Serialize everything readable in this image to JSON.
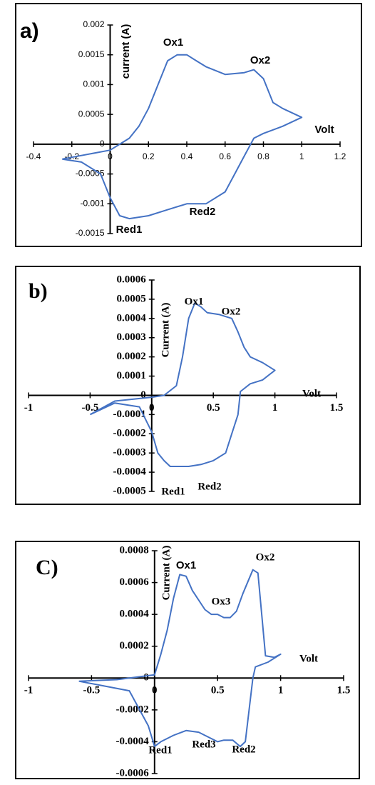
{
  "chart_data": [
    {
      "type": "line",
      "panel_label": "a)",
      "y_label": "current (A)",
      "x_label": "Volt",
      "color": "#4472c4",
      "annotations": [
        "Ox1",
        "Ox2",
        "Red1",
        "Red2"
      ],
      "xlim": [
        -0.4,
        1.2
      ],
      "xticks": [
        -0.4,
        -0.2,
        0,
        0.2,
        0.4,
        0.6,
        0.8,
        1,
        1.2
      ],
      "ylim": [
        -0.0015,
        0.002
      ],
      "yticks": [
        -0.0015,
        -0.001,
        -0.0005,
        0,
        0.0005,
        0.001,
        0.0015,
        0.002
      ],
      "x": [
        -0.25,
        0,
        0.05,
        0.1,
        0.15,
        0.2,
        0.25,
        0.3,
        0.35,
        0.4,
        0.45,
        0.5,
        0.6,
        0.7,
        0.75,
        0.8,
        0.85,
        0.9,
        1.0,
        0.9,
        0.8,
        0.75,
        0.7,
        0.65,
        0.6,
        0.5,
        0.4,
        0.3,
        0.2,
        0.1,
        0.05,
        0,
        -0.05,
        -0.15,
        -0.25
      ],
      "values": [
        -0.00025,
        -0.0001,
        0,
        0.0001,
        0.0003,
        0.0006,
        0.001,
        0.0014,
        0.0015,
        0.0015,
        0.0014,
        0.0013,
        0.00117,
        0.0012,
        0.00125,
        0.0011,
        0.0007,
        0.0006,
        0.00045,
        0.0003,
        0.00018,
        0.0001,
        -0.0002,
        -0.0005,
        -0.0008,
        -0.001,
        -0.001,
        -0.0011,
        -0.0012,
        -0.00125,
        -0.0012,
        -0.0009,
        -0.0005,
        -0.0003,
        -0.00025
      ]
    },
    {
      "type": "line",
      "panel_label": "b)",
      "y_label": "Current (A)",
      "x_label": "Volt",
      "color": "#4472c4",
      "annotations": [
        "Ox1",
        "Ox2",
        "Red1",
        "Red2"
      ],
      "xlim": [
        -1,
        1.5
      ],
      "xticks": [
        -1,
        -0.5,
        0,
        0.5,
        1,
        1.5
      ],
      "ylim": [
        -0.0005,
        0.0006
      ],
      "yticks": [
        -0.0005,
        -0.0004,
        -0.0003,
        -0.0002,
        -0.0001,
        0,
        0.0001,
        0.0002,
        0.0003,
        0.0004,
        0.0005,
        0.0006
      ],
      "x": [
        -0.5,
        -0.3,
        0,
        0.1,
        0.2,
        0.25,
        0.3,
        0.35,
        0.4,
        0.45,
        0.55,
        0.65,
        0.7,
        0.75,
        0.8,
        0.9,
        1.0,
        0.9,
        0.8,
        0.72,
        0.7,
        0.65,
        0.6,
        0.5,
        0.4,
        0.3,
        0.15,
        0.1,
        0.05,
        0,
        -0.1,
        -0.3,
        -0.5
      ],
      "values": [
        -0.0001,
        -3e-05,
        -1e-05,
        0,
        5e-05,
        0.0002,
        0.0004,
        0.00048,
        0.00046,
        0.00043,
        0.00042,
        0.0004,
        0.00033,
        0.00025,
        0.0002,
        0.00017,
        0.00013,
        8e-05,
        6e-05,
        2e-05,
        -0.0001,
        -0.0002,
        -0.0003,
        -0.00034,
        -0.00036,
        -0.00037,
        -0.00037,
        -0.00034,
        -0.0003,
        -0.00019,
        -6e-05,
        -4e-05,
        -0.0001
      ]
    },
    {
      "type": "line",
      "panel_label": "C)",
      "y_label": "Current (A)",
      "x_label": "Volt",
      "color": "#4472c4",
      "annotations": [
        "Ox1",
        "Ox3",
        "Ox2",
        "Red1",
        "Red3",
        "Red2"
      ],
      "xlim": [
        -1,
        1.5
      ],
      "xticks": [
        -1,
        -0.5,
        0,
        0.5,
        1,
        1.5
      ],
      "ylim": [
        -0.0006,
        0.0008
      ],
      "yticks": [
        -0.0006,
        -0.0004,
        -0.0002,
        0,
        0.0002,
        0.0004,
        0.0006,
        0.0008
      ],
      "x": [
        -0.6,
        -0.3,
        0,
        0.05,
        0.1,
        0.15,
        0.2,
        0.25,
        0.3,
        0.4,
        0.45,
        0.5,
        0.55,
        0.6,
        0.65,
        0.7,
        0.78,
        0.82,
        0.85,
        0.88,
        0.95,
        1.0,
        0.9,
        0.8,
        0.78,
        0.75,
        0.72,
        0.68,
        0.62,
        0.55,
        0.5,
        0.45,
        0.35,
        0.25,
        0.15,
        0.05,
        0,
        -0.05,
        -0.2,
        -0.4,
        -0.6
      ],
      "values": [
        -2e-05,
        -1e-05,
        2e-05,
        0.00015,
        0.0003,
        0.0005,
        0.00065,
        0.00064,
        0.00055,
        0.00043,
        0.0004,
        0.0004,
        0.00038,
        0.00038,
        0.00042,
        0.00053,
        0.00068,
        0.00066,
        0.0004,
        0.00014,
        0.00013,
        0.00015,
        0.0001,
        7e-05,
        0,
        -0.0002,
        -0.0004,
        -0.00043,
        -0.00039,
        -0.00039,
        -0.0004,
        -0.00038,
        -0.00034,
        -0.00033,
        -0.00036,
        -0.0004,
        -0.00043,
        -0.0003,
        -8e-05,
        -5e-05,
        -2e-05
      ]
    }
  ]
}
